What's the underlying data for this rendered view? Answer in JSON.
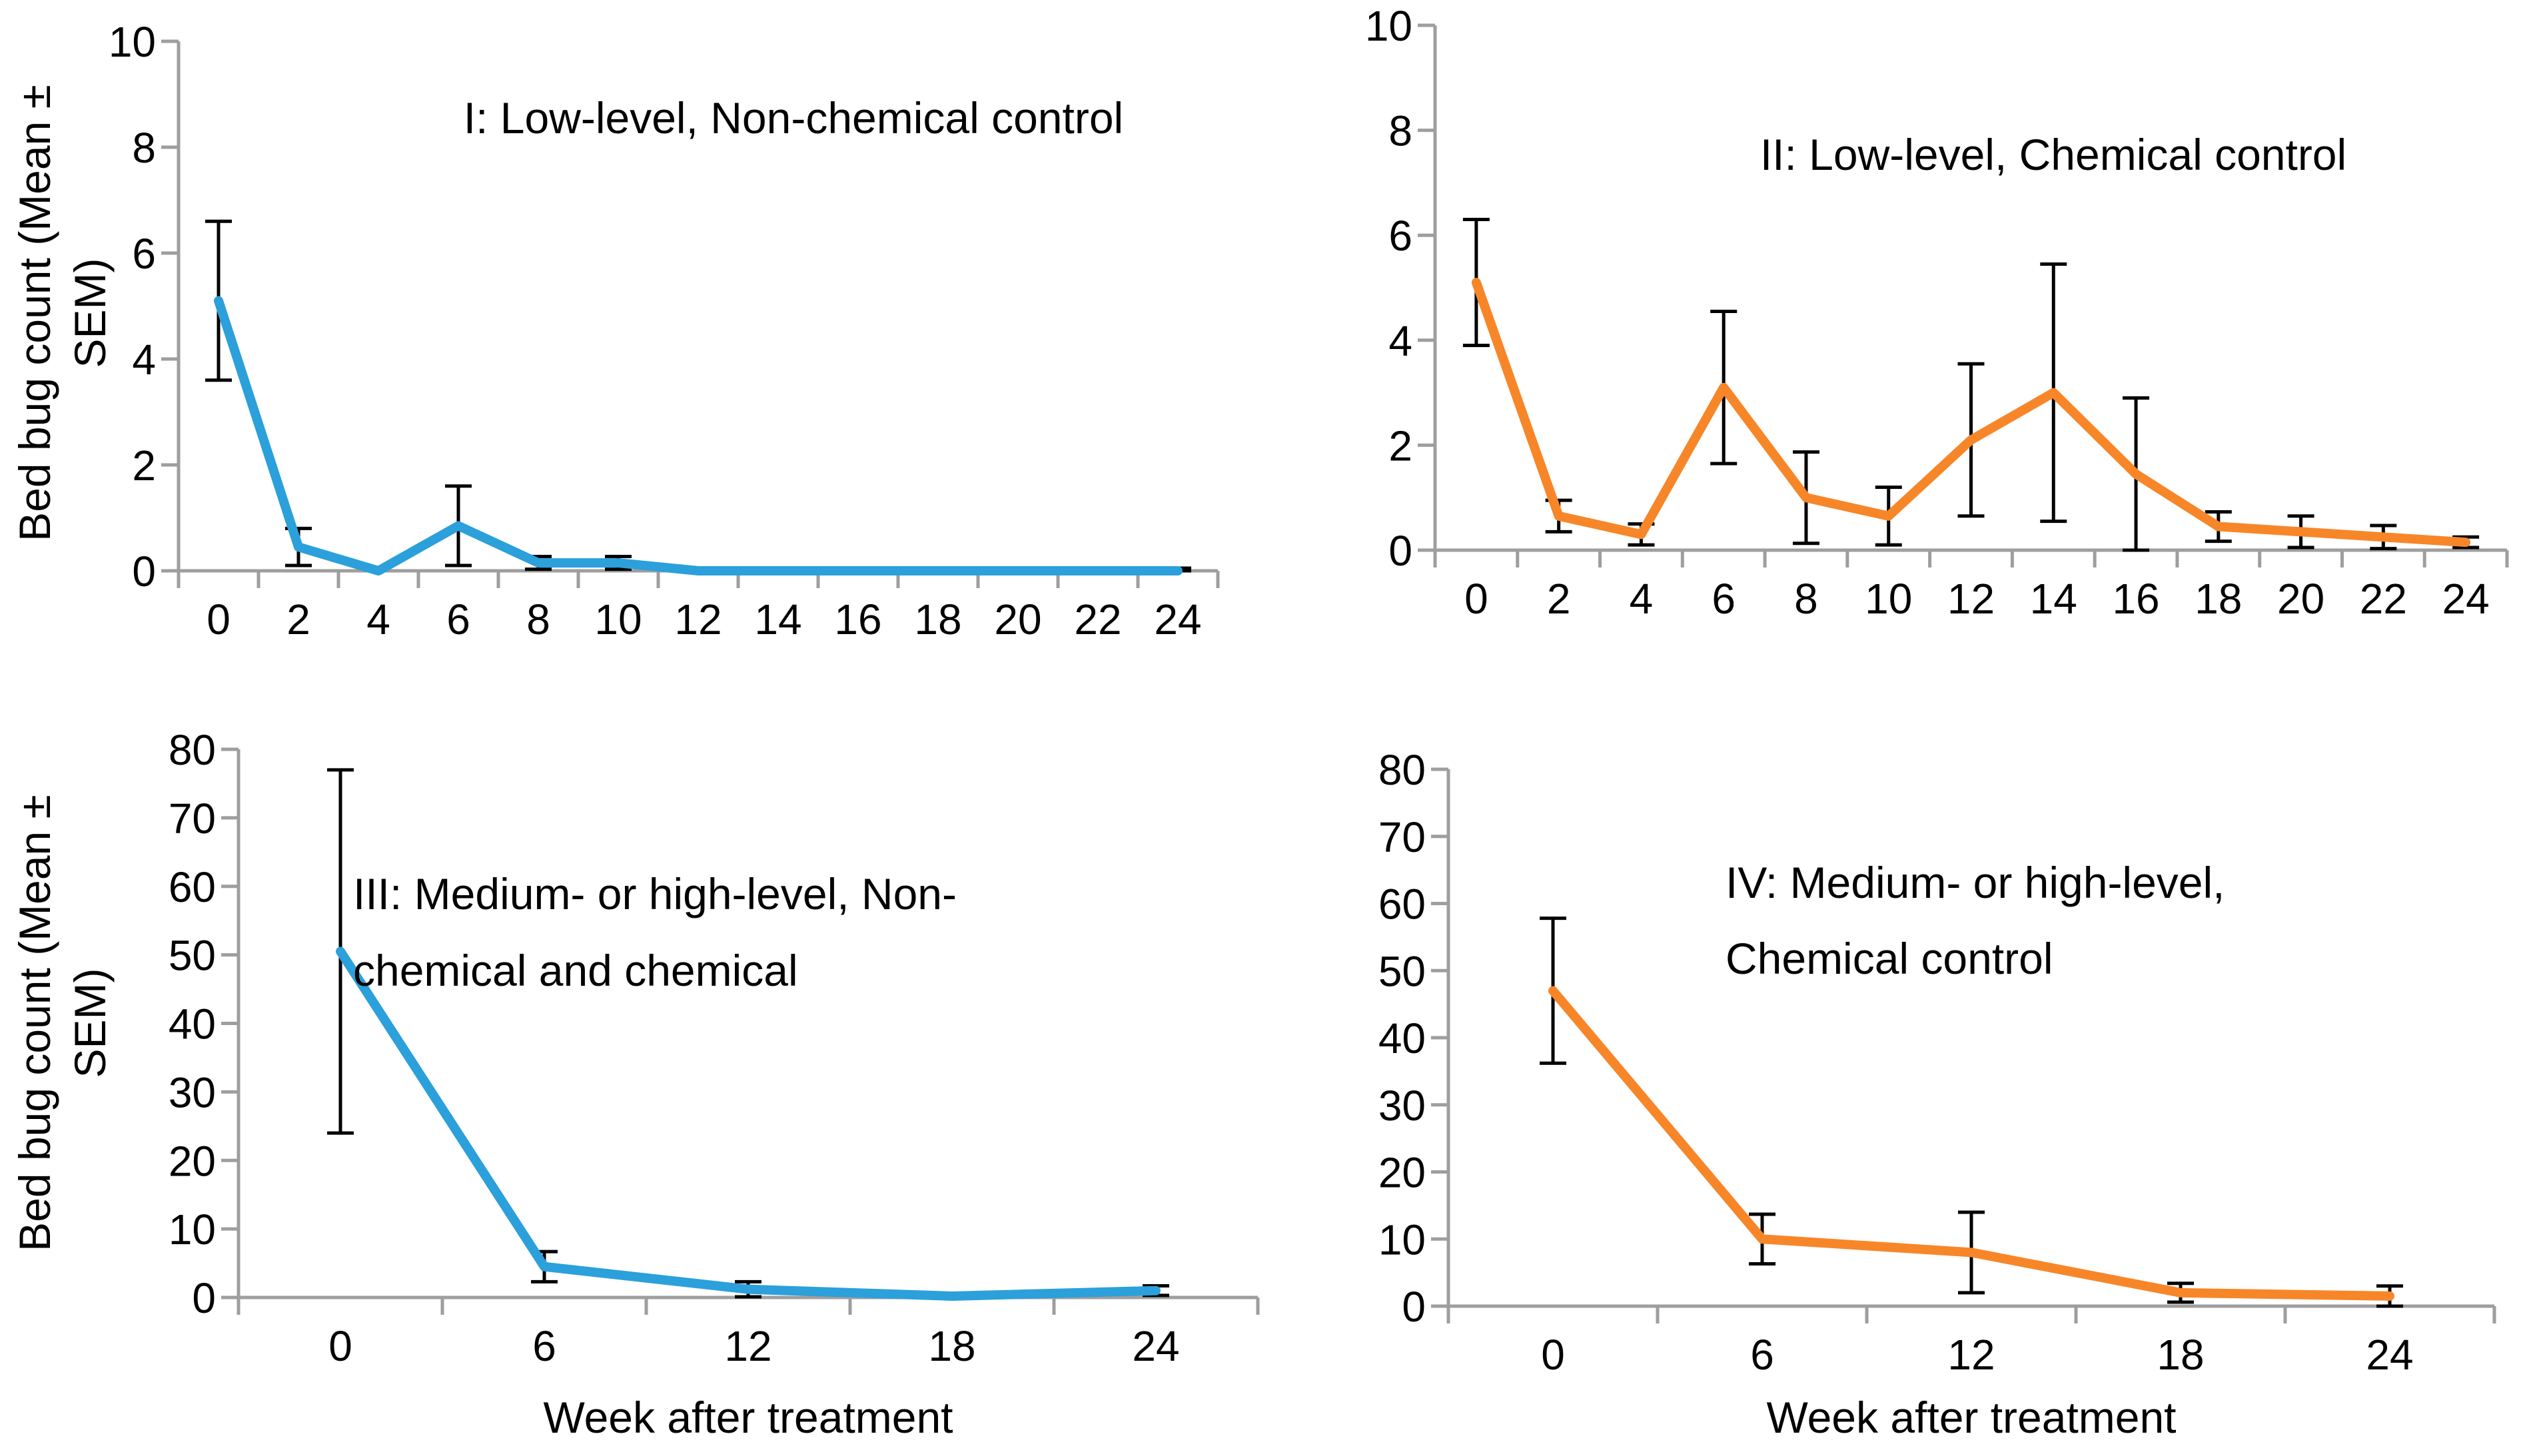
{
  "figure": {
    "y_axis_title": "Bed bug count (Mean ± SEM)",
    "x_axis_title": "Week after treatment",
    "colors": {
      "blue_series": "#2BA0DA",
      "orange_series": "#F78629",
      "axis_gray": "#9E9E9E",
      "error_black": "#000000"
    }
  },
  "chart_data": [
    {
      "id": "I",
      "type": "line",
      "title_lines": [
        "I: Low-level, Non-chemical control"
      ],
      "series_name": "Low-level, Non-chemical control",
      "series_color": "#2BA0DA",
      "categories": [
        0,
        2,
        4,
        6,
        8,
        10,
        12,
        14,
        16,
        18,
        20,
        22,
        24
      ],
      "values": [
        5.1,
        0.45,
        0,
        0.85,
        0.15,
        0.15,
        0,
        0,
        0,
        0,
        0,
        0,
        0
      ],
      "sem": [
        1.5,
        0.35,
        0,
        0.75,
        0.12,
        0.12,
        0,
        0,
        0,
        0,
        0,
        0,
        0.05
      ],
      "yticks": [
        0,
        2,
        4,
        6,
        8,
        10
      ],
      "ylim": [
        0,
        10
      ],
      "ylabel_lines": [
        "Bed bug count (Mean ±",
        "SEM)"
      ],
      "xlabel": null,
      "grid": false,
      "legend": "none"
    },
    {
      "id": "II",
      "type": "line",
      "title_lines": [
        "II: Low-level, Chemical control"
      ],
      "series_name": "Low-level, Chemical control",
      "series_color": "#F78629",
      "categories": [
        0,
        2,
        4,
        6,
        8,
        10,
        12,
        14,
        16,
        18,
        20,
        22,
        24
      ],
      "values": [
        5.1,
        0.65,
        0.3,
        3.1,
        1.0,
        0.65,
        2.1,
        3.0,
        1.45,
        0.45,
        0.35,
        0.25,
        0.15
      ],
      "sem": [
        1.2,
        0.3,
        0.2,
        1.45,
        0.87,
        0.55,
        1.45,
        2.45,
        1.45,
        0.28,
        0.3,
        0.22,
        0.1
      ],
      "yticks": [
        0,
        2,
        4,
        6,
        8,
        10
      ],
      "ylim": [
        0,
        10
      ],
      "ylabel_lines": null,
      "xlabel": null,
      "grid": false,
      "legend": "none"
    },
    {
      "id": "III",
      "type": "line",
      "title_lines": [
        "III: Medium- or high-level, Non-",
        "chemical and chemical"
      ],
      "series_name": "Medium- or high-level, Non-chemical and chemical",
      "series_color": "#2BA0DA",
      "categories": [
        0,
        6,
        12,
        18,
        24
      ],
      "values": [
        50.5,
        4.5,
        1.2,
        0.2,
        1.0
      ],
      "sem": [
        26.5,
        2.2,
        1.1,
        0,
        0.7
      ],
      "yticks": [
        0,
        10,
        20,
        30,
        40,
        50,
        60,
        70,
        80
      ],
      "ylim": [
        0,
        80
      ],
      "ylabel_lines": [
        "Bed bug count (Mean ±",
        "SEM)"
      ],
      "xlabel": "Week after treatment",
      "grid": false,
      "legend": "none"
    },
    {
      "id": "IV",
      "type": "line",
      "title_lines": [
        "IV: Medium- or high-level,",
        "Chemical control"
      ],
      "series_name": "Medium- or high-level, Chemical control",
      "series_color": "#F78629",
      "categories": [
        0,
        6,
        12,
        18,
        24
      ],
      "values": [
        47,
        10,
        8,
        2,
        1.5
      ],
      "sem": [
        10.8,
        3.7,
        6,
        1.4,
        1.5
      ],
      "yticks": [
        0,
        10,
        20,
        30,
        40,
        50,
        60,
        70,
        80
      ],
      "ylim": [
        0,
        80
      ],
      "ylabel_lines": null,
      "xlabel": "Week after treatment",
      "grid": false,
      "legend": "none"
    }
  ]
}
